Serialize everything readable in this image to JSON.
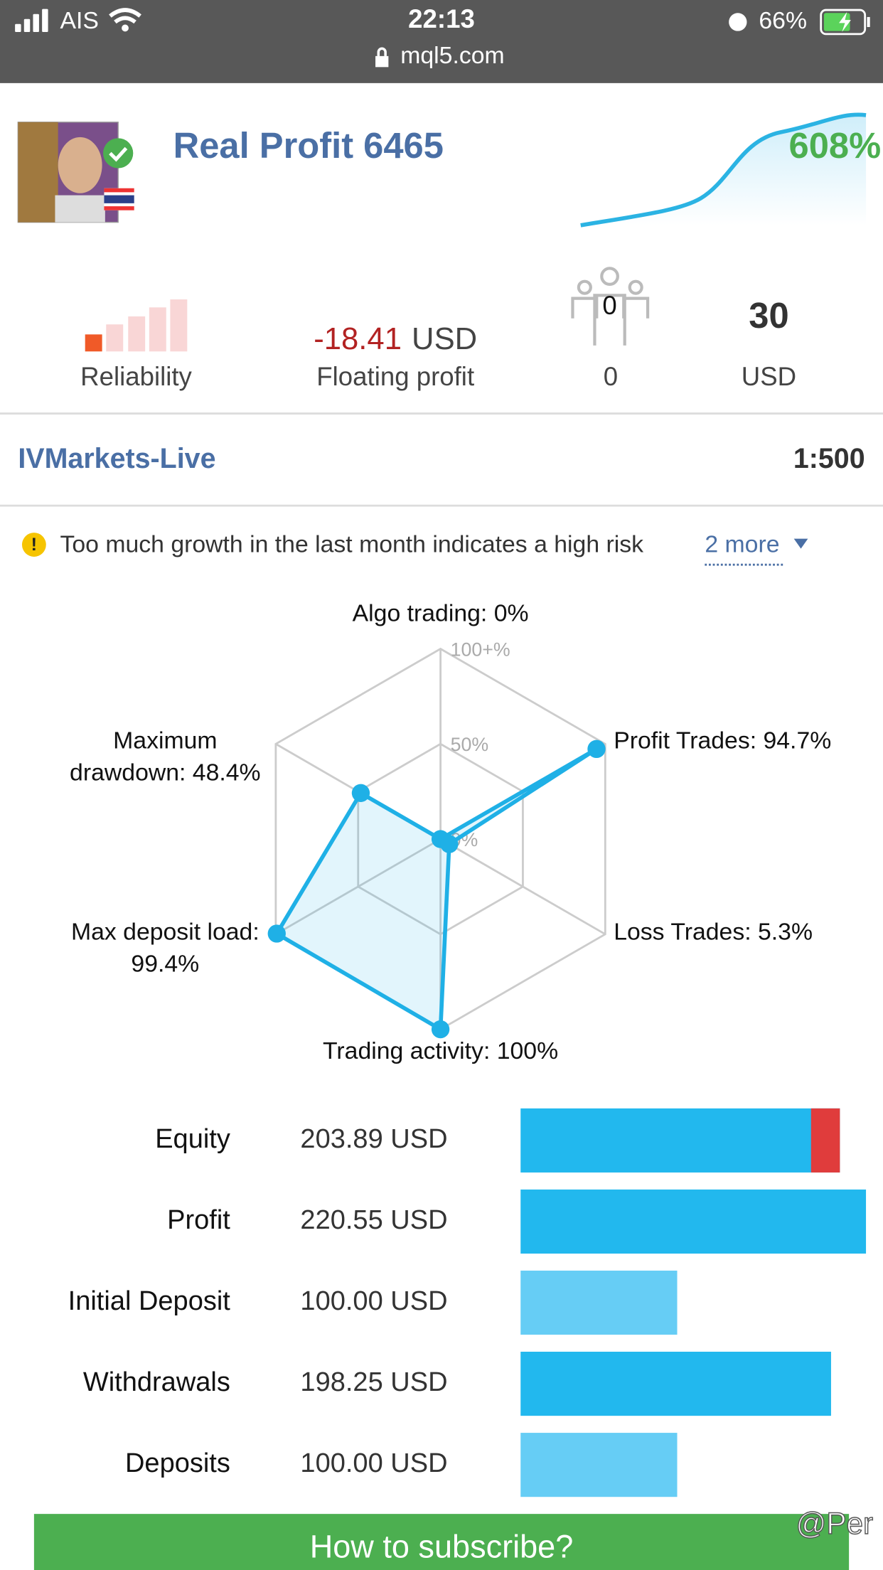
{
  "status_bar": {
    "carrier": "AIS",
    "time": "22:13",
    "battery": "66%",
    "url": "mql5.com"
  },
  "signal": {
    "title": "Real Profit 6465",
    "growth": "608%"
  },
  "stats": {
    "reliability": {
      "label": "Reliability"
    },
    "floating_profit": {
      "value": -18.41,
      "unit": "USD",
      "label": "Floating profit"
    },
    "subscribers": {
      "icon_count": 0,
      "value": 0
    },
    "price": {
      "value": 30,
      "unit": "USD"
    }
  },
  "broker": {
    "name": "IVMarkets-Live",
    "leverage": "1:500"
  },
  "warning": {
    "text": "Too much growth in the last month indicates a high risk",
    "more": "2 more"
  },
  "radar": {
    "rlim": [
      0,
      100
    ],
    "rticks": [
      {
        "value": 100,
        "label": "100+%"
      },
      {
        "value": 50,
        "label": "50%"
      },
      {
        "value": 0,
        "label": "0%"
      }
    ],
    "color": "#1fb0e6",
    "axes": [
      {
        "label": [
          "Algo trading: 0%"
        ],
        "value": 0
      },
      {
        "label": [
          "Profit Trades: 94.7%"
        ],
        "value": 94.7
      },
      {
        "label": [
          "Loss Trades: 5.3%"
        ],
        "value": 5.3
      },
      {
        "label": [
          "Trading activity: 100%"
        ],
        "value": 100
      },
      {
        "label": [
          "Max deposit load:",
          "99.4%"
        ],
        "value": 99.4
      },
      {
        "label": [
          "Maximum",
          "drawdown: 48.4%"
        ],
        "value": 48.4
      }
    ]
  },
  "accounts": {
    "rows": [
      {
        "label": "Equity",
        "value": 203.89,
        "value_label": "203.89 USD",
        "color": "#22b8ee"
      },
      {
        "label": "Profit",
        "value": 220.55,
        "value_label": "220.55 USD",
        "color": "#22b8ee"
      },
      {
        "label": "Initial Deposit",
        "value": 100.0,
        "value_label": "100.00 USD",
        "color": "#66cdf5"
      },
      {
        "label": "Withdrawals",
        "value": 198.25,
        "value_label": "198.25 USD",
        "color": "#22b8ee"
      },
      {
        "label": "Deposits",
        "value": 100.0,
        "value_label": "100.00 USD",
        "color": "#66cdf5"
      }
    ],
    "loss_color": "#e03c3c"
  },
  "button": {
    "label": "How to subscribe?"
  },
  "watermark": "@Per"
}
